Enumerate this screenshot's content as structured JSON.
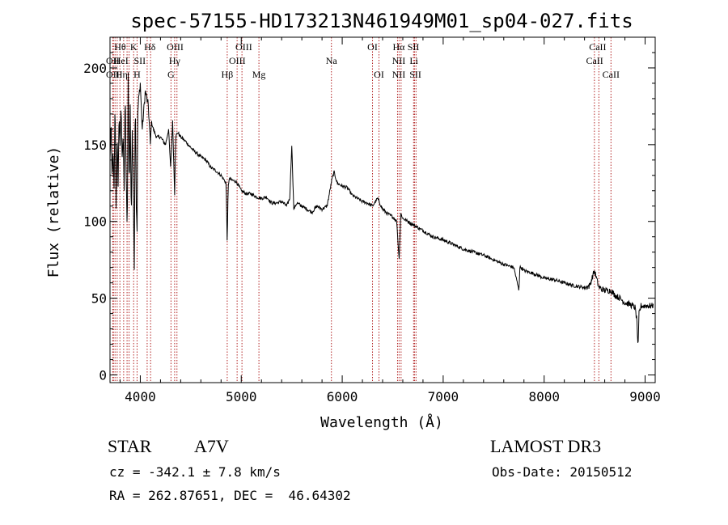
{
  "chart_data": {
    "type": "line",
    "title": "spec-57155-HD173213N461949M01_sp04-027.fits",
    "xlabel": "Wavelength (Å)",
    "ylabel": "Flux (relative)",
    "xlim": [
      3700,
      9100
    ],
    "ylim": [
      -5,
      220
    ],
    "xticks": [
      4000,
      5000,
      6000,
      7000,
      8000,
      9000
    ],
    "xtick_labels": [
      "4000",
      "5000",
      "6000",
      "7000",
      "8000",
      "9000"
    ],
    "yticks": [
      0,
      50,
      100,
      150,
      200
    ],
    "ytick_labels": [
      "0",
      "50",
      "100",
      "150",
      "200"
    ],
    "grid": false,
    "line_color": "#000000",
    "marker_color": "#b22222",
    "series": [
      {
        "x": [
          3700,
          3710,
          3720,
          3730,
          3740,
          3750,
          3760,
          3770,
          3780,
          3790,
          3800,
          3810,
          3820,
          3830,
          3840,
          3850,
          3860,
          3870,
          3880,
          3890,
          3900,
          3910,
          3920,
          3930,
          3940,
          3950,
          3960,
          3968,
          3975,
          3985,
          4000,
          4020,
          4050,
          4080,
          4100,
          4110,
          4130,
          4160,
          4200,
          4250,
          4280,
          4300,
          4320,
          4340,
          4350,
          4370,
          4400,
          4450,
          4500,
          4550,
          4600,
          4650,
          4700,
          4750,
          4800,
          4830,
          4850,
          4861,
          4870,
          4880,
          4900,
          4950,
          5000,
          5050,
          5100,
          5150,
          5200,
          5250,
          5300,
          5350,
          5400,
          5450,
          5480,
          5500,
          5520,
          5550,
          5600,
          5650,
          5700,
          5750,
          5800,
          5850,
          5900,
          5920,
          5950,
          6000,
          6050,
          6100,
          6150,
          6200,
          6250,
          6300,
          6350,
          6400,
          6450,
          6500,
          6540,
          6563,
          6580,
          6600,
          6650,
          6700,
          6750,
          6800,
          6850,
          6900,
          7000,
          7100,
          7200,
          7300,
          7400,
          7500,
          7600,
          7700,
          7750,
          7760,
          7770,
          7800,
          7900,
          8000,
          8100,
          8200,
          8300,
          8400,
          8450,
          8498,
          8542,
          8600,
          8662,
          8700,
          8750,
          8800,
          8850,
          8900,
          8920,
          8930,
          8940,
          8960,
          9000,
          9050,
          9080
        ],
        "y": [
          140,
          165,
          130,
          145,
          120,
          180,
          110,
          155,
          125,
          170,
          150,
          175,
          140,
          160,
          120,
          185,
          130,
          90,
          195,
          120,
          175,
          100,
          160,
          125,
          70,
          185,
          110,
          95,
          170,
          180,
          190,
          160,
          185,
          175,
          150,
          165,
          160,
          155,
          155,
          150,
          160,
          135,
          165,
          118,
          155,
          158,
          155,
          152,
          148,
          145,
          142,
          140,
          135,
          133,
          130,
          127,
          125,
          85,
          122,
          128,
          127,
          126,
          120,
          118,
          118,
          116,
          115,
          116,
          112,
          112,
          113,
          110,
          115,
          150,
          108,
          112,
          110,
          108,
          106,
          110,
          108,
          110,
          128,
          132,
          125,
          123,
          122,
          117,
          115,
          113,
          112,
          110,
          115,
          108,
          105,
          103,
          100,
          75,
          105,
          102,
          100,
          98,
          96,
          94,
          92,
          90,
          88,
          85,
          82,
          80,
          78,
          75,
          72,
          70,
          55,
          70,
          70,
          68,
          66,
          63,
          62,
          60,
          58,
          57,
          58,
          68,
          57,
          55,
          55,
          52,
          50,
          47,
          46,
          44,
          35,
          15,
          40,
          45,
          45,
          45,
          45
        ]
      }
    ],
    "line_markers": [
      {
        "x": 3727,
        "label": "OII"
      },
      {
        "x": 3734,
        "label": "OII"
      },
      {
        "x": 3750,
        "label": "OIIH"
      },
      {
        "x": 3771,
        "label": "OII"
      },
      {
        "x": 3798,
        "label": "Hθ"
      },
      {
        "x": 3835,
        "label": "Hη"
      },
      {
        "x": 3869,
        "label": "NeIII"
      },
      {
        "x": 3889,
        "label": "HeI"
      },
      {
        "x": 3934,
        "label": "K"
      },
      {
        "x": 3968,
        "label": "H"
      },
      {
        "x": 4068,
        "label": "SII"
      },
      {
        "x": 4102,
        "label": "Hδ"
      },
      {
        "x": 4304,
        "label": "G"
      },
      {
        "x": 4340,
        "label": "Hγ"
      },
      {
        "x": 4363,
        "label": "OIII"
      },
      {
        "x": 4861,
        "label": "Hβ"
      },
      {
        "x": 4959,
        "label": "OIII"
      },
      {
        "x": 5007,
        "label": "OIII"
      },
      {
        "x": 5175,
        "label": "Mg"
      },
      {
        "x": 5893,
        "label": "Na"
      },
      {
        "x": 6300,
        "label": "OI"
      },
      {
        "x": 6364,
        "label": "OI"
      },
      {
        "x": 6548,
        "label": "NII"
      },
      {
        "x": 6563,
        "label": "Hα"
      },
      {
        "x": 6583,
        "label": "NII"
      },
      {
        "x": 6707,
        "label": "Li"
      },
      {
        "x": 6716,
        "label": "SII"
      },
      {
        "x": 6731,
        "label": "SII"
      },
      {
        "x": 8498,
        "label": "CaII"
      },
      {
        "x": 8542,
        "label": "CaII"
      },
      {
        "x": 8662,
        "label": "CaII"
      }
    ],
    "marker_labels": [
      {
        "text": "Hθ",
        "x": 3800,
        "row": 1
      },
      {
        "text": "K",
        "x": 3934,
        "row": 1
      },
      {
        "text": "Hδ",
        "x": 4095,
        "row": 1
      },
      {
        "text": "OIII",
        "x": 4345,
        "row": 1
      },
      {
        "text": "OIII",
        "x": 5025,
        "row": 1
      },
      {
        "text": "OI",
        "x": 6300,
        "row": 1
      },
      {
        "text": "Hα",
        "x": 6560,
        "row": 1
      },
      {
        "text": "SII",
        "x": 6705,
        "row": 1
      },
      {
        "text": "CaII",
        "x": 8530,
        "row": 1
      },
      {
        "text": "OII",
        "x": 3727,
        "row": 2
      },
      {
        "text": "HeI",
        "x": 3810,
        "row": 2
      },
      {
        "text": "SII",
        "x": 3995,
        "row": 2
      },
      {
        "text": "Hγ",
        "x": 4340,
        "row": 2
      },
      {
        "text": "OIII",
        "x": 4960,
        "row": 2
      },
      {
        "text": "Na",
        "x": 5893,
        "row": 2
      },
      {
        "text": "NII",
        "x": 6560,
        "row": 2
      },
      {
        "text": "Li",
        "x": 6710,
        "row": 2
      },
      {
        "text": "CaII",
        "x": 8500,
        "row": 2
      },
      {
        "text": "OII",
        "x": 3727,
        "row": 3
      },
      {
        "text": "Hη",
        "x": 3815,
        "row": 3
      },
      {
        "text": "H",
        "x": 3968,
        "row": 3
      },
      {
        "text": "G",
        "x": 4304,
        "row": 3
      },
      {
        "text": "Hβ",
        "x": 4861,
        "row": 3
      },
      {
        "text": "Mg",
        "x": 5175,
        "row": 3
      },
      {
        "text": "OI",
        "x": 6364,
        "row": 3
      },
      {
        "text": "NII",
        "x": 6560,
        "row": 3
      },
      {
        "text": "SII",
        "x": 6725,
        "row": 3
      },
      {
        "text": "CaII",
        "x": 8662,
        "row": 3
      }
    ]
  },
  "info": {
    "object_class": "STAR",
    "subclass": "A7V",
    "survey": "LAMOST DR3",
    "cz": "cz = -342.1 ± 7.8 km/s",
    "obs_date": "Obs-Date: 20150512",
    "coords": "RA = 262.87651, DEC =  46.64302"
  }
}
